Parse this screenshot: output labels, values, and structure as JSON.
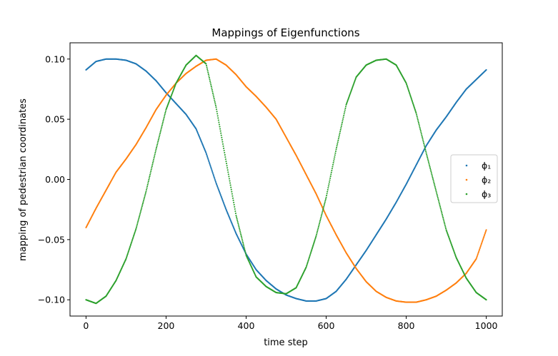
{
  "chart_data": {
    "type": "scatter",
    "title": "Mappings of Eigenfunctions",
    "xlabel": "time step",
    "ylabel": "mapping of pedestrian coordinates",
    "xlim": [
      -40,
      1040
    ],
    "ylim": [
      -0.1135,
      0.1135
    ],
    "xticks": [
      0,
      200,
      400,
      600,
      800,
      1000
    ],
    "yticks": [
      -0.1,
      -0.05,
      0.0,
      0.05,
      0.1
    ],
    "xtick_labels": [
      "0",
      "200",
      "400",
      "600",
      "800",
      "1000"
    ],
    "ytick_labels": [
      "−0.10",
      "−0.05",
      "0.00",
      "0.05",
      "0.10"
    ],
    "grid": false,
    "legend_position": "center-right",
    "series": [
      {
        "name": "ϕ₁",
        "color": "#1f77b4",
        "x": [
          0,
          25,
          50,
          75,
          100,
          125,
          150,
          175,
          200,
          225,
          250,
          275,
          300,
          325,
          350,
          375,
          400,
          425,
          450,
          475,
          500,
          525,
          550,
          575,
          600,
          625,
          650,
          675,
          700,
          725,
          750,
          775,
          800,
          825,
          850,
          875,
          900,
          925,
          950,
          975,
          1000
        ],
        "y": [
          0.091,
          0.098,
          0.1,
          0.1,
          0.099,
          0.096,
          0.09,
          0.082,
          0.072,
          0.063,
          0.054,
          0.042,
          0.022,
          -0.003,
          -0.025,
          -0.045,
          -0.062,
          -0.075,
          -0.084,
          -0.091,
          -0.096,
          -0.099,
          -0.101,
          -0.101,
          -0.099,
          -0.093,
          -0.083,
          -0.071,
          -0.059,
          -0.046,
          -0.033,
          -0.019,
          -0.004,
          0.012,
          0.028,
          0.041,
          0.052,
          0.064,
          0.075,
          0.083,
          0.091
        ]
      },
      {
        "name": "ϕ₂",
        "color": "#ff7f0e",
        "x": [
          0,
          25,
          50,
          75,
          100,
          125,
          150,
          175,
          200,
          225,
          250,
          275,
          300,
          325,
          350,
          375,
          400,
          425,
          450,
          475,
          500,
          525,
          550,
          575,
          600,
          625,
          650,
          675,
          700,
          725,
          750,
          775,
          800,
          825,
          850,
          875,
          900,
          925,
          950,
          975,
          1000
        ],
        "y": [
          -0.04,
          -0.024,
          -0.009,
          0.006,
          0.017,
          0.029,
          0.043,
          0.058,
          0.07,
          0.08,
          0.088,
          0.094,
          0.099,
          0.1,
          0.095,
          0.087,
          0.077,
          0.069,
          0.06,
          0.05,
          0.035,
          0.02,
          0.004,
          -0.012,
          -0.03,
          -0.046,
          -0.061,
          -0.074,
          -0.085,
          -0.093,
          -0.098,
          -0.101,
          -0.102,
          -0.102,
          -0.1,
          -0.097,
          -0.092,
          -0.086,
          -0.078,
          -0.066,
          -0.042
        ]
      },
      {
        "name": "ϕ₃",
        "color": "#2ca02c",
        "x": [
          0,
          25,
          50,
          75,
          100,
          125,
          150,
          175,
          200,
          225,
          250,
          275,
          300,
          325,
          350,
          375,
          400,
          425,
          450,
          475,
          500,
          525,
          550,
          575,
          600,
          625,
          650,
          675,
          700,
          725,
          750,
          775,
          800,
          825,
          850,
          875,
          900,
          925,
          950,
          975,
          1000
        ],
        "y": [
          -0.1,
          -0.103,
          -0.097,
          -0.084,
          -0.066,
          -0.041,
          -0.01,
          0.025,
          0.058,
          0.08,
          0.095,
          0.103,
          0.096,
          0.06,
          0.015,
          -0.03,
          -0.063,
          -0.081,
          -0.089,
          -0.094,
          -0.095,
          -0.09,
          -0.073,
          -0.047,
          -0.015,
          0.025,
          0.062,
          0.085,
          0.095,
          0.099,
          0.1,
          0.095,
          0.08,
          0.055,
          0.022,
          -0.01,
          -0.042,
          -0.065,
          -0.082,
          -0.094,
          -0.1
        ]
      }
    ]
  }
}
